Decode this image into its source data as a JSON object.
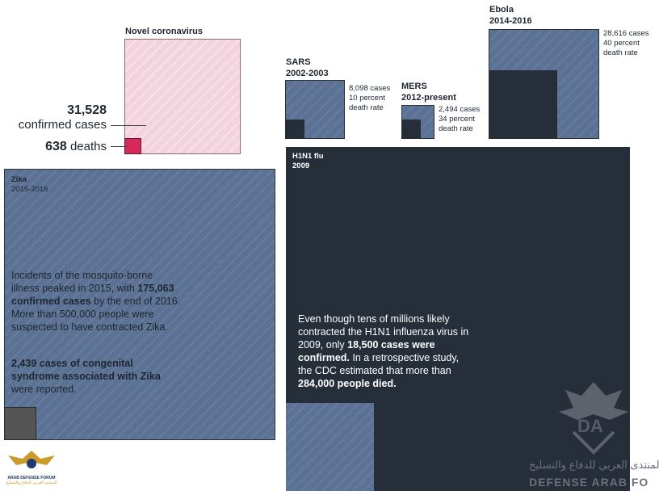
{
  "chart_data": {
    "type": "area",
    "series": [
      {
        "name": "Novel coronavirus",
        "period": "",
        "confirmed_cases": 31528,
        "deaths": 638
      },
      {
        "name": "SARS",
        "period": "2002-2003",
        "confirmed_cases": 8098,
        "death_rate_percent": 10
      },
      {
        "name": "MERS",
        "period": "2012-present",
        "confirmed_cases": 2494,
        "death_rate_percent": 34
      },
      {
        "name": "Ebola",
        "period": "2014-2016",
        "confirmed_cases": 28616,
        "death_rate_percent": 40
      },
      {
        "name": "Zika",
        "period": "2015-2016",
        "confirmed_cases": 175063,
        "congenital_syndrome_cases": 2439
      },
      {
        "name": "H1N1 flu",
        "period": "2009",
        "confirmed_cases": 18500,
        "estimated_deaths": 284000
      }
    ],
    "colors": {
      "slate": "#5b7294",
      "dark": "#252e39",
      "pink": "#f3d3de",
      "crimson": "#d6285a",
      "zika_inner": "#555555"
    }
  },
  "labels": {
    "corona": {
      "title": "Novel coronavirus",
      "cases_number": "31,528",
      "cases_text": "confirmed cases",
      "deaths_number": "638",
      "deaths_text": "deaths"
    },
    "sars": {
      "title1": "SARS",
      "title2": "2002-2003",
      "line1": "8,098 cases",
      "line2": "10 percent",
      "line3": "death rate"
    },
    "mers": {
      "title1": "MERS",
      "title2": "2012-present",
      "line1": "2,494 cases",
      "line2": "34 percent",
      "line3": "death rate"
    },
    "ebola": {
      "title1": "Ebola",
      "title2": "2014-2016",
      "line1": "28,616 cases",
      "line2": "40 percent",
      "line3": "death rate"
    },
    "zika": {
      "title1": "Zika",
      "title2": "2015-2016",
      "p1_a": "Incidents of the mosquito-borne illness peaked in 2015, with ",
      "p1_b": "175,063 confirmed cases",
      "p1_c": " by the end of 2016. More than 500,000 people were suspected to have contracted Zika.",
      "p2_a": "2,439 cases of congenital syndrome associated with Zika",
      "p2_b": " were reported."
    },
    "h1n1": {
      "title1": "H1N1 flu",
      "title2": "2009",
      "p_a": "Even though tens of millions likely contracted the H1N1 influenza virus in 2009, only ",
      "p_b": "18,500 cases were confirmed.",
      "p_c": " In a retrospective study, the CDC estimated that more than ",
      "p_d": "284,000 people died."
    }
  },
  "watermark": {
    "logo_top": "ARAB DEFENSE FORUM",
    "logo_sub": "المنتدى العربي للدفاع والتسليح",
    "logo_letters": "DA",
    "arabic": "المنتدى العربي للدفاع والتسليح",
    "english": "DEFENSE ARAB FO"
  }
}
